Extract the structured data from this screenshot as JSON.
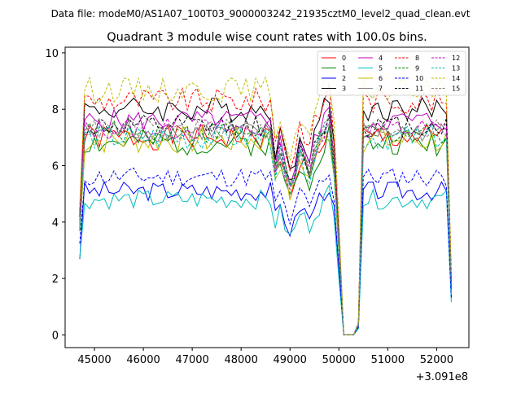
{
  "suptitle": "Data file: modeM0/AS1A07_100T03_9000003242_21935cztM0_level2_quad_clean.evt",
  "chart_data": {
    "type": "line",
    "title": "Quadrant 3 module wise count rates with 100.0s bins.",
    "xlabel": "",
    "ylabel": "",
    "x_offset_label": "+3.091e8",
    "xlim": [
      44400,
      52660
    ],
    "ylim": [
      -0.45,
      10.2
    ],
    "xticks": [
      45000,
      46000,
      47000,
      48000,
      49000,
      50000,
      51000,
      52000
    ],
    "xtick_labels": [
      "45000",
      "46000",
      "47000",
      "48000",
      "49000",
      "50000",
      "51000",
      "52000"
    ],
    "yticks": [
      0,
      2,
      4,
      6,
      8,
      10
    ],
    "ytick_labels": [
      "0",
      "2",
      "4",
      "6",
      "8",
      "10"
    ],
    "grid": false,
    "legend_position": "top-right",
    "legend_columns": 4,
    "x_range": {
      "start": 44700,
      "step": 100,
      "count": 77
    },
    "gap_range": {
      "low_start_index": 54,
      "low_end_index": 56,
      "low_value": 0.0
    },
    "series": [
      {
        "name": "0",
        "color": "#ff0000",
        "dashed": false,
        "level": 7.0,
        "amplitude": 0.45,
        "seed": 1
      },
      {
        "name": "1",
        "color": "#008000",
        "dashed": false,
        "level": 6.8,
        "amplitude": 0.45,
        "seed": 2
      },
      {
        "name": "2",
        "color": "#0000ff",
        "dashed": false,
        "level": 5.1,
        "amplitude": 0.35,
        "seed": 3
      },
      {
        "name": "3",
        "color": "#000000",
        "dashed": false,
        "level": 8.0,
        "amplitude": 0.45,
        "seed": 4
      },
      {
        "name": "4",
        "color": "#bf00bf",
        "dashed": false,
        "level": 7.6,
        "amplitude": 0.4,
        "seed": 5
      },
      {
        "name": "5",
        "color": "#00bfbf",
        "dashed": false,
        "level": 4.8,
        "amplitude": 0.35,
        "seed": 6
      },
      {
        "name": "6",
        "color": "#bfbf00",
        "dashed": false,
        "level": 6.9,
        "amplitude": 0.5,
        "seed": 7
      },
      {
        "name": "7",
        "color": "#808080",
        "dashed": false,
        "level": 7.2,
        "amplitude": 0.35,
        "seed": 8
      },
      {
        "name": "8",
        "color": "#ff0000",
        "dashed": true,
        "level": 8.3,
        "amplitude": 0.45,
        "seed": 9
      },
      {
        "name": "9",
        "color": "#008000",
        "dashed": true,
        "level": 7.2,
        "amplitude": 0.4,
        "seed": 10
      },
      {
        "name": "10",
        "color": "#0000ff",
        "dashed": true,
        "level": 5.6,
        "amplitude": 0.35,
        "seed": 11
      },
      {
        "name": "11",
        "color": "#000000",
        "dashed": true,
        "level": 7.4,
        "amplitude": 0.4,
        "seed": 12
      },
      {
        "name": "12",
        "color": "#bf00bf",
        "dashed": true,
        "level": 7.3,
        "amplitude": 0.4,
        "seed": 13
      },
      {
        "name": "13",
        "color": "#00bfbf",
        "dashed": true,
        "level": 7.0,
        "amplitude": 0.45,
        "seed": 14
      },
      {
        "name": "14",
        "color": "#bfbf00",
        "dashed": true,
        "level": 8.7,
        "amplitude": 0.45,
        "seed": 15
      },
      {
        "name": "15",
        "color": "#808080",
        "dashed": true,
        "level": 7.3,
        "amplitude": 0.35,
        "seed": 16
      }
    ]
  }
}
